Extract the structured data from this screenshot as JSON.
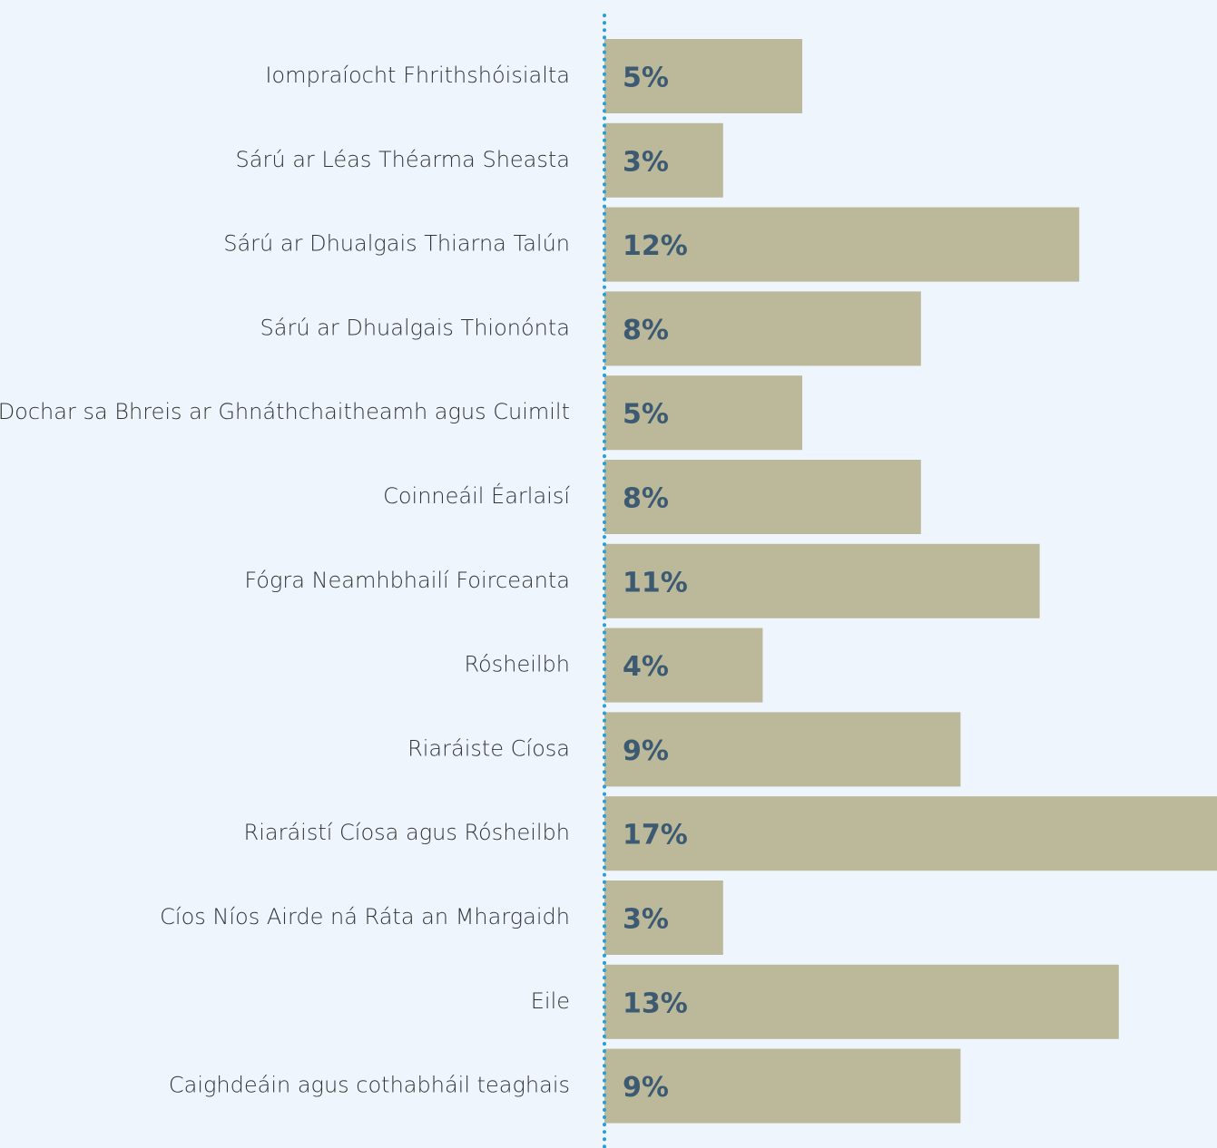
{
  "chart_data": {
    "type": "barh",
    "categories": [
      "Iompraíocht Fhrithshóisialta",
      "Sárú ar Léas Théarma Sheasta",
      "Sárú ar Dhualgais Thiarna Talún",
      "Sárú ar Dhualgais Thionónta",
      "Dochar sa Bhreis ar Ghnáthchaitheamh agus Cuimilt",
      "Coinneáil Éarlaisí",
      "Fógra Neamhbhailí Foirceanta",
      "Rósheilbh",
      "Riaráiste Cíosa",
      "Riaráistí Cíosa agus Rósheilbh",
      "Cíos Níos Airde ná Ráta an Mhargaidh",
      "Eile",
      "Caighdeáin agus cothabháil teaghais"
    ],
    "values": [
      5,
      3,
      12,
      8,
      5,
      8,
      11,
      4,
      9,
      17,
      3,
      13,
      9
    ],
    "value_labels": [
      "5%",
      "3%",
      "12%",
      "8%",
      "5%",
      "8%",
      "11%",
      "4%",
      "9%",
      "17%",
      "3%",
      "13%",
      "9%"
    ],
    "color": "#bcb89a"
  }
}
